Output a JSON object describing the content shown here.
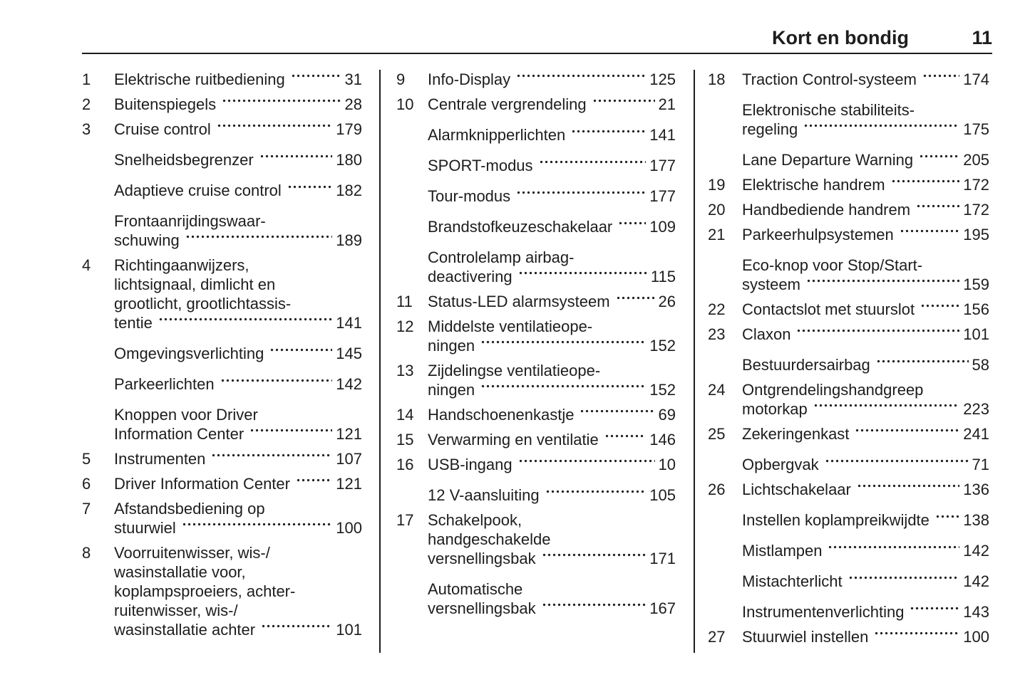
{
  "header": {
    "title": "Kort en bondig",
    "page_number": "11"
  },
  "columns": [
    {
      "entries": [
        {
          "num": "1",
          "lines": [
            "Elektrische ruitbediening"
          ],
          "page": "31"
        },
        {
          "num": "2",
          "lines": [
            "Buitenspiegels"
          ],
          "page": "28"
        },
        {
          "num": "3",
          "lines": [
            "Cruise control"
          ],
          "page": "179"
        },
        {
          "num": "",
          "lines": [
            "Snelheidsbegrenzer"
          ],
          "page": "180"
        },
        {
          "num": "",
          "lines": [
            "Adaptieve cruise control"
          ],
          "page": "182"
        },
        {
          "num": "",
          "lines": [
            "Frontaanrijdingswaar-",
            "schuwing"
          ],
          "page": "189"
        },
        {
          "num": "4",
          "lines": [
            "Richtingaanwijzers,",
            "lichtsignaal, dimlicht en",
            "grootlicht, grootlichtassis-",
            "tentie"
          ],
          "page": "141"
        },
        {
          "num": "",
          "lines": [
            "Omgevingsverlichting"
          ],
          "page": "145"
        },
        {
          "num": "",
          "lines": [
            "Parkeerlichten"
          ],
          "page": "142"
        },
        {
          "num": "",
          "lines": [
            "Knoppen voor Driver",
            "Information Center"
          ],
          "page": "121"
        },
        {
          "num": "5",
          "lines": [
            "Instrumenten"
          ],
          "page": "107"
        },
        {
          "num": "6",
          "lines": [
            "Driver Information Center"
          ],
          "page": "121"
        },
        {
          "num": "7",
          "lines": [
            "Afstandsbediening op",
            "stuurwiel"
          ],
          "page": "100"
        },
        {
          "num": "8",
          "lines": [
            "Voorruitenwisser, wis-/",
            "wasinstallatie voor,",
            "koplampsproeiers, achter-",
            "ruitenwisser, wis-/",
            "wasinstallatie achter"
          ],
          "page": "101"
        }
      ]
    },
    {
      "entries": [
        {
          "num": "9",
          "lines": [
            "Info-Display"
          ],
          "page": "125"
        },
        {
          "num": "10",
          "lines": [
            "Centrale vergrendeling"
          ],
          "page": "21"
        },
        {
          "num": "",
          "lines": [
            "Alarmknipperlichten"
          ],
          "page": "141"
        },
        {
          "num": "",
          "lines": [
            "SPORT-modus"
          ],
          "page": "177"
        },
        {
          "num": "",
          "lines": [
            "Tour-modus"
          ],
          "page": "177"
        },
        {
          "num": "",
          "lines": [
            "Brandstofkeuzeschakelaar"
          ],
          "page": "109"
        },
        {
          "num": "",
          "lines": [
            "Controlelamp airbag-",
            "deactivering"
          ],
          "page": "115"
        },
        {
          "num": "11",
          "lines": [
            "Status-LED alarmsysteem"
          ],
          "page": "26"
        },
        {
          "num": "12",
          "lines": [
            "Middelste ventilatieope-",
            "ningen"
          ],
          "page": "152"
        },
        {
          "num": "13",
          "lines": [
            "Zijdelingse ventilatieope-",
            "ningen"
          ],
          "page": "152"
        },
        {
          "num": "14",
          "lines": [
            "Handschoenenkastje"
          ],
          "page": "69"
        },
        {
          "num": "15",
          "lines": [
            "Verwarming en ventilatie"
          ],
          "page": "146"
        },
        {
          "num": "16",
          "lines": [
            "USB-ingang"
          ],
          "page": "10"
        },
        {
          "num": "",
          "lines": [
            "12 V-aansluiting"
          ],
          "page": "105"
        },
        {
          "num": "17",
          "lines": [
            "Schakelpook,",
            "handgeschakelde",
            "versnellingsbak"
          ],
          "page": "171"
        },
        {
          "num": "",
          "lines": [
            "Automatische",
            "versnellingsbak"
          ],
          "page": "167"
        }
      ]
    },
    {
      "entries": [
        {
          "num": "18",
          "lines": [
            "Traction Control-systeem"
          ],
          "page": "174"
        },
        {
          "num": "",
          "lines": [
            "Elektronische stabiliteits-",
            "regeling"
          ],
          "page": "175"
        },
        {
          "num": "",
          "lines": [
            "Lane Departure Warning"
          ],
          "page": "205"
        },
        {
          "num": "19",
          "lines": [
            "Elektrische handrem"
          ],
          "page": "172"
        },
        {
          "num": "20",
          "lines": [
            "Handbediende handrem"
          ],
          "page": "172"
        },
        {
          "num": "21",
          "lines": [
            "Parkeerhulpsystemen"
          ],
          "page": "195"
        },
        {
          "num": "",
          "lines": [
            "Eco-knop voor Stop/Start-",
            "systeem"
          ],
          "page": "159"
        },
        {
          "num": "22",
          "lines": [
            "Contactslot met stuurslot"
          ],
          "page": "156"
        },
        {
          "num": "23",
          "lines": [
            "Claxon"
          ],
          "page": "101"
        },
        {
          "num": "",
          "lines": [
            "Bestuurdersairbag"
          ],
          "page": "58"
        },
        {
          "num": "24",
          "lines": [
            "Ontgrendelingshandgreep",
            "motorkap"
          ],
          "page": "223"
        },
        {
          "num": "25",
          "lines": [
            "Zekeringenkast"
          ],
          "page": "241"
        },
        {
          "num": "",
          "lines": [
            "Opbergvak"
          ],
          "page": "71"
        },
        {
          "num": "26",
          "lines": [
            "Lichtschakelaar"
          ],
          "page": "136"
        },
        {
          "num": "",
          "lines": [
            "Instellen koplampreikwijdte"
          ],
          "page": "138"
        },
        {
          "num": "",
          "lines": [
            "Mistlampen"
          ],
          "page": "142"
        },
        {
          "num": "",
          "lines": [
            "Mistachterlicht"
          ],
          "page": "142"
        },
        {
          "num": "",
          "lines": [
            "Instrumentenverlichting"
          ],
          "page": "143"
        },
        {
          "num": "27",
          "lines": [
            "Stuurwiel instellen"
          ],
          "page": "100"
        }
      ]
    }
  ]
}
